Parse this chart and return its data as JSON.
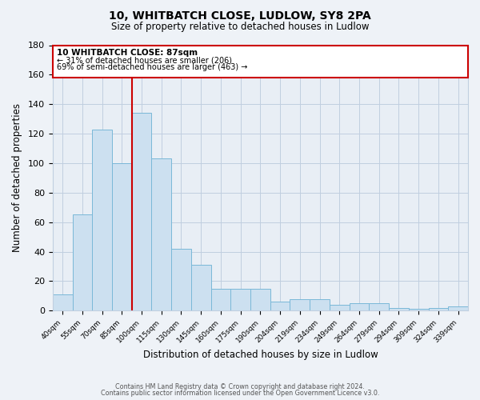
{
  "title": "10, WHITBATCH CLOSE, LUDLOW, SY8 2PA",
  "subtitle": "Size of property relative to detached houses in Ludlow",
  "xlabel": "Distribution of detached houses by size in Ludlow",
  "ylabel": "Number of detached properties",
  "categories": [
    "40sqm",
    "55sqm",
    "70sqm",
    "85sqm",
    "100sqm",
    "115sqm",
    "130sqm",
    "145sqm",
    "160sqm",
    "175sqm",
    "190sqm",
    "204sqm",
    "219sqm",
    "234sqm",
    "249sqm",
    "264sqm",
    "279sqm",
    "294sqm",
    "309sqm",
    "324sqm",
    "339sqm"
  ],
  "values": [
    11,
    65,
    123,
    100,
    134,
    103,
    42,
    31,
    15,
    15,
    15,
    6,
    8,
    8,
    4,
    5,
    5,
    2,
    1,
    2,
    3
  ],
  "bar_color": "#cce0f0",
  "bar_edge_color": "#7ab8d8",
  "marker_label": "10 WHITBATCH CLOSE: 87sqm",
  "annotation_line1": "← 31% of detached houses are smaller (206)",
  "annotation_line2": "69% of semi-detached houses are larger (463) →",
  "vline_color": "#cc0000",
  "ylim": [
    0,
    180
  ],
  "yticks": [
    0,
    20,
    40,
    60,
    80,
    100,
    120,
    140,
    160,
    180
  ],
  "footer1": "Contains HM Land Registry data © Crown copyright and database right 2024.",
  "footer2": "Contains public sector information licensed under the Open Government Licence v3.0.",
  "bg_color": "#eef2f7",
  "plot_bg_color": "#e8eef5",
  "grid_color": "#c0cfe0",
  "annotation_box_edge": "#cc0000"
}
